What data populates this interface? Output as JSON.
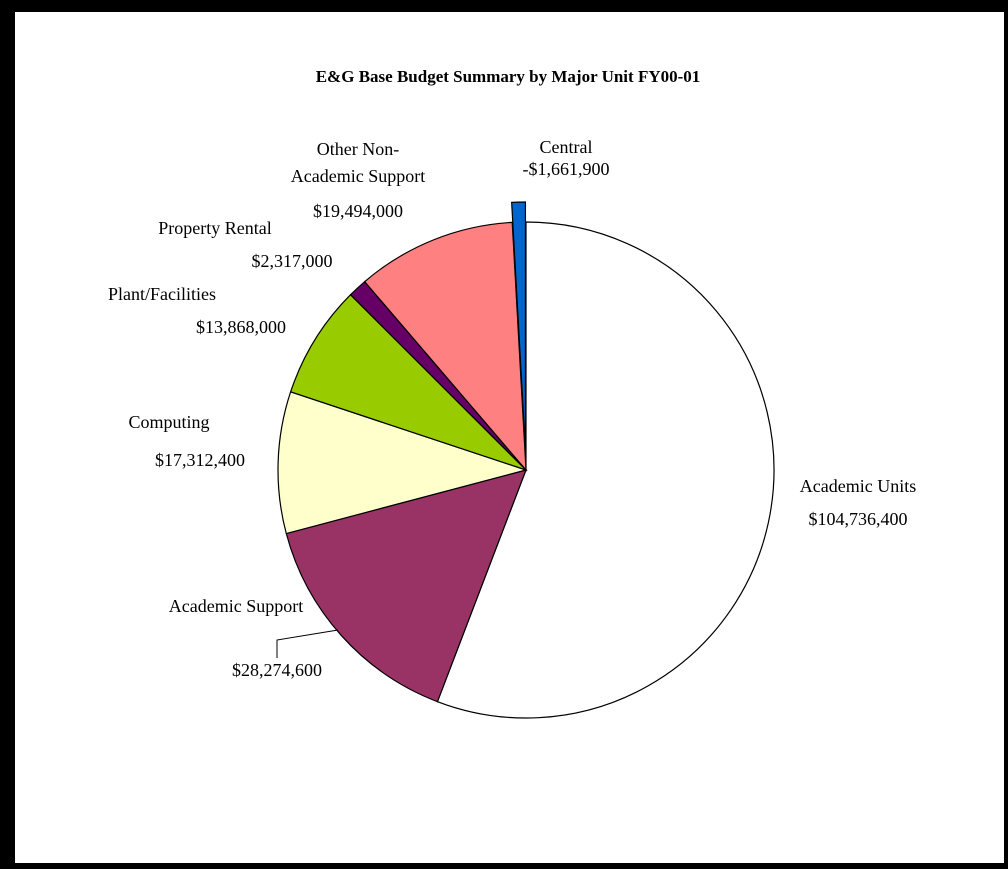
{
  "chart_data": {
    "type": "pie",
    "title": "E&G Base Budget Summary by Major Unit FY00-01",
    "slices": [
      {
        "label_lines": [
          "Academic Units"
        ],
        "value_label": "$104,736,400",
        "value": 104736400,
        "color": "#FFFFFF"
      },
      {
        "label_lines": [
          "Academic Support"
        ],
        "value_label": "$28,274,600",
        "value": 28274600,
        "color": "#993366"
      },
      {
        "label_lines": [
          "Computing"
        ],
        "value_label": "$17,312,400",
        "value": 17312400,
        "color": "#FFFFCC"
      },
      {
        "label_lines": [
          "Plant/Facilities"
        ],
        "value_label": "$13,868,000",
        "value": 13868000,
        "color": "#99CC00"
      },
      {
        "label_lines": [
          "Property Rental"
        ],
        "value_label": "$2,317,000",
        "value": 2317000,
        "color": "#660066"
      },
      {
        "label_lines": [
          "Other Non-",
          "Academic Support"
        ],
        "value_label": "$19,494,000",
        "value": 19494000,
        "color": "#FF8080"
      },
      {
        "label_lines": [
          "Central"
        ],
        "value_label": "-$1,661,900",
        "value": -1661900,
        "color": "#0066CC",
        "exploded": true
      }
    ]
  }
}
